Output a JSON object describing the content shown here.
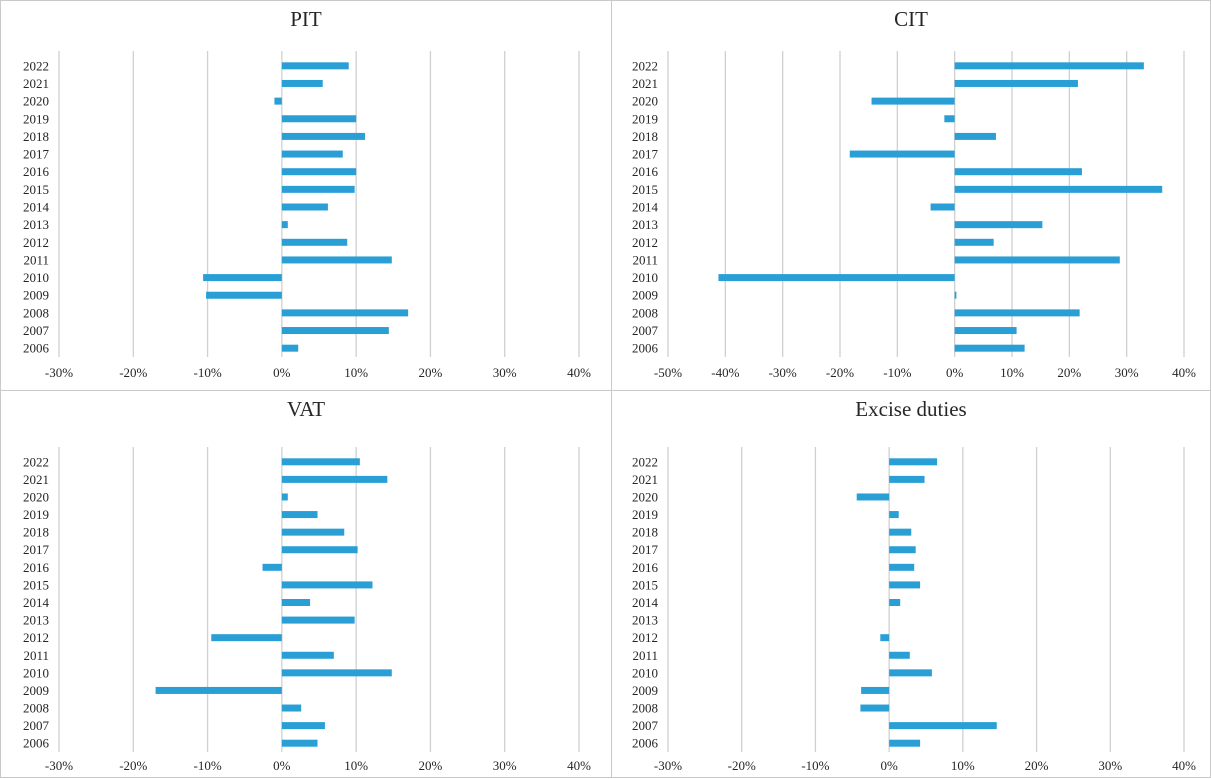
{
  "colors": {
    "bar": "#2a9fd6",
    "grid": "#d0d0d0",
    "text": "#262626",
    "border": "#c9c9c9"
  },
  "chart_data": [
    {
      "type": "bar",
      "orientation": "horizontal",
      "title": "PIT",
      "categories": [
        "2022",
        "2021",
        "2020",
        "2019",
        "2018",
        "2017",
        "2016",
        "2015",
        "2014",
        "2013",
        "2012",
        "2011",
        "2010",
        "2009",
        "2008",
        "2007",
        "2006"
      ],
      "values": [
        9.0,
        5.5,
        -1.0,
        10.0,
        11.2,
        8.2,
        10.0,
        9.8,
        6.2,
        0.8,
        8.8,
        14.8,
        -10.6,
        -10.2,
        17.0,
        14.4,
        2.2
      ],
      "xlim": [
        -30,
        40
      ],
      "xticks": [
        -30,
        -20,
        -10,
        0,
        10,
        20,
        30,
        40
      ],
      "xtick_labels": [
        "-30%",
        "-20%",
        "-10%",
        "0%",
        "10%",
        "20%",
        "30%",
        "40%"
      ],
      "grid": true
    },
    {
      "type": "bar",
      "orientation": "horizontal",
      "title": "CIT",
      "categories": [
        "2022",
        "2021",
        "2020",
        "2019",
        "2018",
        "2017",
        "2016",
        "2015",
        "2014",
        "2013",
        "2012",
        "2011",
        "2010",
        "2009",
        "2008",
        "2007",
        "2006"
      ],
      "values": [
        33.0,
        21.5,
        -14.5,
        -1.8,
        7.2,
        -18.3,
        22.2,
        36.2,
        -4.2,
        15.3,
        6.8,
        28.8,
        -41.2,
        0.3,
        21.8,
        10.8,
        12.2
      ],
      "xlim": [
        -50,
        40
      ],
      "xticks": [
        -50,
        -40,
        -30,
        -20,
        -10,
        0,
        10,
        20,
        30,
        40
      ],
      "xtick_labels": [
        "-50%",
        "-40%",
        "-30%",
        "-20%",
        "-10%",
        "0%",
        "10%",
        "20%",
        "30%",
        "40%"
      ],
      "grid": true
    },
    {
      "type": "bar",
      "orientation": "horizontal",
      "title": "VAT",
      "categories": [
        "2022",
        "2021",
        "2020",
        "2019",
        "2018",
        "2017",
        "2016",
        "2015",
        "2014",
        "2013",
        "2012",
        "2011",
        "2010",
        "2009",
        "2008",
        "2007",
        "2006"
      ],
      "values": [
        10.5,
        14.2,
        0.8,
        4.8,
        8.4,
        10.2,
        -2.6,
        12.2,
        3.8,
        9.8,
        -9.5,
        7.0,
        14.8,
        -17.0,
        2.6,
        5.8,
        4.8
      ],
      "xlim": [
        -30,
        40
      ],
      "xticks": [
        -30,
        -20,
        -10,
        0,
        10,
        20,
        30,
        40
      ],
      "xtick_labels": [
        "-30%",
        "-20%",
        "-10%",
        "0%",
        "10%",
        "20%",
        "30%",
        "40%"
      ],
      "grid": true
    },
    {
      "type": "bar",
      "orientation": "horizontal",
      "title": "Excise duties",
      "categories": [
        "2022",
        "2021",
        "2020",
        "2019",
        "2018",
        "2017",
        "2016",
        "2015",
        "2014",
        "2013",
        "2012",
        "2011",
        "2010",
        "2009",
        "2008",
        "2007",
        "2006"
      ],
      "values": [
        6.5,
        4.8,
        -4.4,
        1.3,
        3.0,
        3.6,
        3.4,
        4.2,
        1.5,
        0.0,
        -1.2,
        2.8,
        5.8,
        -3.8,
        -3.9,
        14.6,
        4.2
      ],
      "xlim": [
        -30,
        40
      ],
      "xticks": [
        -30,
        -20,
        -10,
        0,
        10,
        20,
        30,
        40
      ],
      "xtick_labels": [
        "-30%",
        "-20%",
        "-10%",
        "0%",
        "10%",
        "20%",
        "30%",
        "40%"
      ],
      "grid": true
    }
  ]
}
